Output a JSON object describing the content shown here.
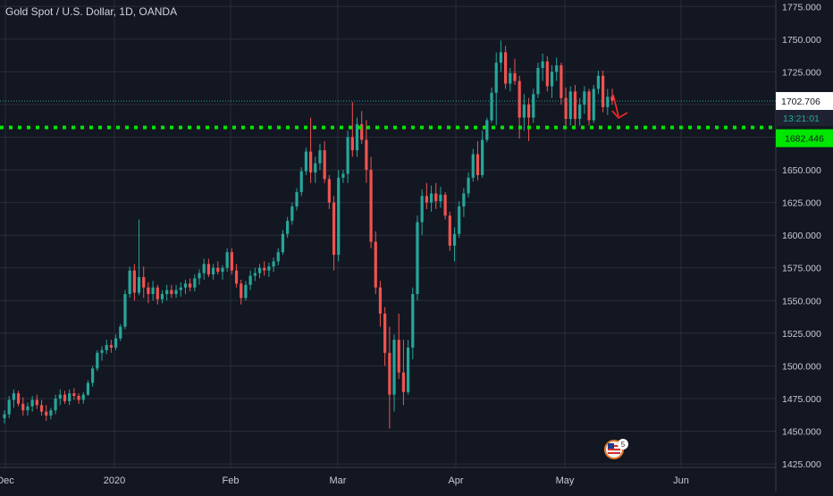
{
  "chart_data": {
    "type": "candlestick",
    "title": "Gold Spot / U.S. Dollar, 1D, OANDA",
    "x_ticks": [
      "Dec",
      "2020",
      "Feb",
      "Mar",
      "Apr",
      "May",
      "Jun"
    ],
    "y_ticks": [
      "1775.000",
      "1750.000",
      "1725.000",
      "1700.000",
      "1675.000",
      "1650.000",
      "1625.000",
      "1600.000",
      "1575.000",
      "1550.000",
      "1525.000",
      "1500.000",
      "1475.000",
      "1450.000",
      "1425.000"
    ],
    "ylim": [
      1423,
      1780
    ],
    "grid": true,
    "colors": {
      "up": "#26a69a",
      "down": "#ef5350",
      "background": "#131722",
      "grid": "#2a2e39",
      "support": "#00e600",
      "price_line": "#26a69a",
      "arrow": "#ff2a2a"
    },
    "last_price": {
      "label": "1702.706",
      "value": 1702.706,
      "countdown": "13:21:01"
    },
    "support_level": {
      "label": "1682.446",
      "value": 1682.446
    },
    "annotation": {
      "type": "arrow",
      "direction": "down"
    },
    "ohlc": [
      [
        1460,
        1466,
        1456,
        1463
      ],
      [
        1463,
        1477,
        1460,
        1474
      ],
      [
        1474,
        1482,
        1468,
        1479
      ],
      [
        1479,
        1481,
        1469,
        1471
      ],
      [
        1471,
        1476,
        1462,
        1466
      ],
      [
        1466,
        1472,
        1462,
        1469
      ],
      [
        1469,
        1477,
        1465,
        1474
      ],
      [
        1474,
        1478,
        1467,
        1470
      ],
      [
        1470,
        1474,
        1462,
        1465
      ],
      [
        1465,
        1470,
        1458,
        1462
      ],
      [
        1462,
        1468,
        1459,
        1466
      ],
      [
        1466,
        1478,
        1463,
        1475
      ],
      [
        1475,
        1482,
        1470,
        1478
      ],
      [
        1478,
        1481,
        1471,
        1473
      ],
      [
        1473,
        1482,
        1470,
        1479
      ],
      [
        1479,
        1483,
        1474,
        1477
      ],
      [
        1477,
        1479,
        1471,
        1474
      ],
      [
        1474,
        1480,
        1471,
        1478
      ],
      [
        1478,
        1489,
        1477,
        1487
      ],
      [
        1487,
        1500,
        1484,
        1498
      ],
      [
        1498,
        1512,
        1496,
        1510
      ],
      [
        1510,
        1515,
        1504,
        1512
      ],
      [
        1512,
        1520,
        1509,
        1516
      ],
      [
        1516,
        1520,
        1510,
        1514
      ],
      [
        1514,
        1524,
        1512,
        1521
      ],
      [
        1521,
        1532,
        1519,
        1530
      ],
      [
        1530,
        1558,
        1528,
        1555
      ],
      [
        1555,
        1576,
        1552,
        1573
      ],
      [
        1573,
        1578,
        1550,
        1556
      ],
      [
        1556,
        1612,
        1554,
        1568
      ],
      [
        1568,
        1576,
        1552,
        1560
      ],
      [
        1560,
        1564,
        1548,
        1555
      ],
      [
        1555,
        1565,
        1550,
        1560
      ],
      [
        1560,
        1562,
        1547,
        1551
      ],
      [
        1551,
        1558,
        1548,
        1555
      ],
      [
        1555,
        1562,
        1550,
        1558
      ],
      [
        1558,
        1562,
        1552,
        1555
      ],
      [
        1555,
        1562,
        1552,
        1558
      ],
      [
        1558,
        1564,
        1553,
        1560
      ],
      [
        1560,
        1566,
        1555,
        1563
      ],
      [
        1563,
        1567,
        1557,
        1560
      ],
      [
        1560,
        1570,
        1557,
        1567
      ],
      [
        1567,
        1574,
        1562,
        1571
      ],
      [
        1571,
        1582,
        1566,
        1578
      ],
      [
        1578,
        1582,
        1568,
        1570
      ],
      [
        1570,
        1578,
        1566,
        1575
      ],
      [
        1575,
        1580,
        1570,
        1572
      ],
      [
        1572,
        1577,
        1566,
        1575
      ],
      [
        1575,
        1590,
        1572,
        1587
      ],
      [
        1587,
        1590,
        1570,
        1573
      ],
      [
        1573,
        1578,
        1560,
        1563
      ],
      [
        1563,
        1566,
        1547,
        1552
      ],
      [
        1552,
        1565,
        1550,
        1562
      ],
      [
        1562,
        1573,
        1558,
        1569
      ],
      [
        1569,
        1575,
        1565,
        1571
      ],
      [
        1571,
        1578,
        1567,
        1575
      ],
      [
        1575,
        1580,
        1569,
        1573
      ],
      [
        1573,
        1579,
        1568,
        1576
      ],
      [
        1576,
        1583,
        1572,
        1580
      ],
      [
        1580,
        1590,
        1577,
        1587
      ],
      [
        1587,
        1604,
        1585,
        1601
      ],
      [
        1601,
        1614,
        1598,
        1611
      ],
      [
        1611,
        1625,
        1608,
        1622
      ],
      [
        1622,
        1636,
        1619,
        1633
      ],
      [
        1633,
        1652,
        1630,
        1649
      ],
      [
        1649,
        1667,
        1646,
        1664
      ],
      [
        1664,
        1690,
        1640,
        1648
      ],
      [
        1648,
        1660,
        1640,
        1655
      ],
      [
        1655,
        1670,
        1650,
        1665
      ],
      [
        1665,
        1672,
        1640,
        1643
      ],
      [
        1643,
        1646,
        1620,
        1625
      ],
      [
        1625,
        1630,
        1573,
        1585
      ],
      [
        1585,
        1650,
        1580,
        1644
      ],
      [
        1644,
        1650,
        1640,
        1647
      ],
      [
        1647,
        1680,
        1640,
        1675
      ],
      [
        1675,
        1702,
        1660,
        1665
      ],
      [
        1665,
        1690,
        1660,
        1685
      ],
      [
        1685,
        1695,
        1670,
        1673
      ],
      [
        1673,
        1688,
        1640,
        1650
      ],
      [
        1650,
        1660,
        1590,
        1595
      ],
      [
        1595,
        1603,
        1555,
        1560
      ],
      [
        1560,
        1565,
        1530,
        1540
      ],
      [
        1540,
        1545,
        1500,
        1510
      ],
      [
        1510,
        1530,
        1452,
        1478
      ],
      [
        1478,
        1524,
        1465,
        1520
      ],
      [
        1520,
        1540,
        1490,
        1495
      ],
      [
        1495,
        1520,
        1470,
        1480
      ],
      [
        1480,
        1520,
        1478,
        1514
      ],
      [
        1514,
        1560,
        1505,
        1555
      ],
      [
        1555,
        1615,
        1550,
        1610
      ],
      [
        1610,
        1635,
        1600,
        1630
      ],
      [
        1630,
        1640,
        1620,
        1625
      ],
      [
        1625,
        1638,
        1618,
        1632
      ],
      [
        1632,
        1640,
        1620,
        1626
      ],
      [
        1626,
        1637,
        1621,
        1631
      ],
      [
        1631,
        1633,
        1612,
        1615
      ],
      [
        1615,
        1618,
        1588,
        1592
      ],
      [
        1592,
        1606,
        1580,
        1601
      ],
      [
        1601,
        1626,
        1598,
        1622
      ],
      [
        1622,
        1636,
        1614,
        1632
      ],
      [
        1632,
        1648,
        1629,
        1644
      ],
      [
        1644,
        1666,
        1641,
        1662
      ],
      [
        1662,
        1672,
        1642,
        1646
      ],
      [
        1646,
        1680,
        1644,
        1673
      ],
      [
        1673,
        1690,
        1671,
        1688
      ],
      [
        1688,
        1713,
        1686,
        1709
      ],
      [
        1709,
        1740,
        1684,
        1732
      ],
      [
        1732,
        1749,
        1725,
        1740
      ],
      [
        1740,
        1745,
        1712,
        1716
      ],
      [
        1716,
        1728,
        1710,
        1724
      ],
      [
        1724,
        1735,
        1715,
        1718
      ],
      [
        1718,
        1722,
        1674,
        1690
      ],
      [
        1690,
        1708,
        1680,
        1700
      ],
      [
        1700,
        1705,
        1672,
        1690
      ],
      [
        1690,
        1712,
        1686,
        1708
      ],
      [
        1708,
        1732,
        1705,
        1728
      ],
      [
        1728,
        1739,
        1718,
        1733
      ],
      [
        1733,
        1737,
        1710,
        1714
      ],
      [
        1714,
        1730,
        1705,
        1725
      ],
      [
        1725,
        1736,
        1718,
        1730
      ],
      [
        1730,
        1732,
        1700,
        1705
      ],
      [
        1705,
        1713,
        1684,
        1689
      ],
      [
        1689,
        1714,
        1684,
        1710
      ],
      [
        1710,
        1715,
        1682,
        1689
      ],
      [
        1689,
        1705,
        1684,
        1700
      ],
      [
        1700,
        1714,
        1693,
        1710
      ],
      [
        1710,
        1712,
        1684,
        1688
      ],
      [
        1688,
        1715,
        1686,
        1712
      ],
      [
        1712,
        1726,
        1708,
        1722
      ],
      [
        1722,
        1726,
        1694,
        1698
      ],
      [
        1698,
        1712,
        1692,
        1706
      ],
      [
        1706,
        1712,
        1700,
        1703
      ]
    ]
  }
}
